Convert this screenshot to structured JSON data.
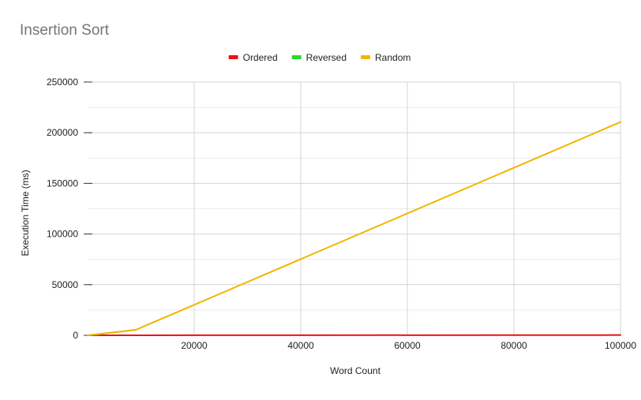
{
  "chart_data": {
    "type": "line",
    "title": "Insertion Sort",
    "xlabel": "Word Count",
    "ylabel": "Execution Time (ms)",
    "xlim": [
      0,
      100000
    ],
    "ylim": [
      0,
      250000
    ],
    "x_ticks": [
      20000,
      40000,
      60000,
      80000,
      100000
    ],
    "y_ticks": [
      0,
      50000,
      100000,
      150000,
      200000,
      250000
    ],
    "grid": true,
    "legend_position": "top",
    "series": [
      {
        "name": "Ordered",
        "color": "#ee1111",
        "points": [
          {
            "x": 100,
            "y": 0
          },
          {
            "x": 10000,
            "y": 20
          },
          {
            "x": 100000,
            "y": 250
          }
        ]
      },
      {
        "name": "Reversed",
        "color": "#22dd22",
        "points": [
          {
            "x": 100,
            "y": 0
          },
          {
            "x": 9000,
            "y": 5400
          }
        ]
      },
      {
        "name": "Random",
        "color": "#f4b400",
        "points": [
          {
            "x": 100,
            "y": 0
          },
          {
            "x": 9000,
            "y": 5300
          },
          {
            "x": 100000,
            "y": 210500
          }
        ]
      }
    ]
  }
}
